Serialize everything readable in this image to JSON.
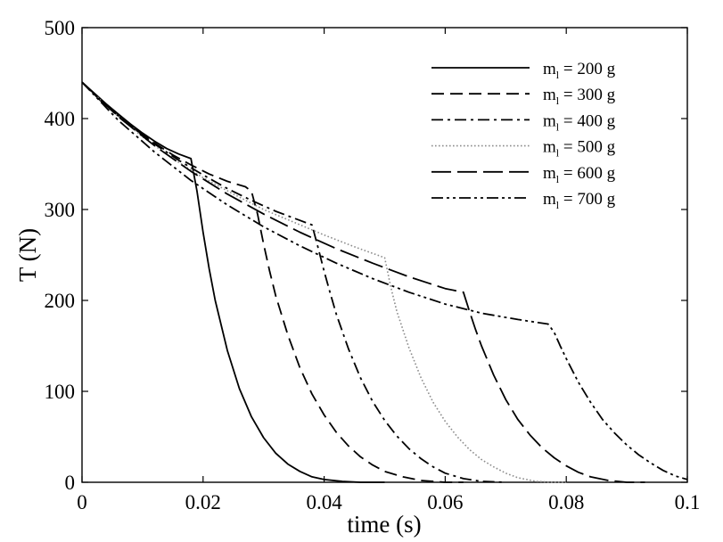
{
  "chart_data": {
    "type": "line",
    "title": "",
    "xlabel": "time (s)",
    "ylabel": "T (N)",
    "xlim": [
      0,
      0.1
    ],
    "ylim": [
      0,
      500
    ],
    "xticks": [
      0,
      0.02,
      0.04,
      0.06,
      0.08,
      0.1
    ],
    "xtick_labels": [
      "0",
      "0.02",
      "0.04",
      "0.06",
      "0.08",
      "0.1"
    ],
    "yticks": [
      0,
      100,
      200,
      300,
      400,
      500
    ],
    "ytick_labels": [
      "0",
      "100",
      "200",
      "300",
      "400",
      "500"
    ],
    "grid": false,
    "legend_position": "top-right",
    "series": [
      {
        "label_main": "m",
        "label_sub": "l",
        "label_rest": " = 200 g",
        "style": "solid",
        "color": "#000000",
        "x": [
          0,
          0.002,
          0.004,
          0.006,
          0.008,
          0.01,
          0.012,
          0.014,
          0.016,
          0.018,
          0.019,
          0.02,
          0.021,
          0.022,
          0.024,
          0.026,
          0.028,
          0.03,
          0.032,
          0.034,
          0.036,
          0.038,
          0.04,
          0.043,
          0.046,
          0.05
        ],
        "y": [
          440,
          428,
          416,
          405,
          394,
          384,
          375,
          367,
          361,
          356,
          320,
          275,
          235,
          200,
          145,
          103,
          72,
          49,
          32,
          20,
          12,
          6,
          3,
          1,
          0,
          0
        ]
      },
      {
        "label_main": "m",
        "label_sub": "l",
        "label_rest": " = 300 g",
        "style": "dash",
        "color": "#000000",
        "x": [
          0,
          0.003,
          0.006,
          0.009,
          0.012,
          0.015,
          0.018,
          0.021,
          0.024,
          0.027,
          0.028,
          0.029,
          0.03,
          0.031,
          0.032,
          0.034,
          0.036,
          0.038,
          0.04,
          0.042,
          0.044,
          0.046,
          0.048,
          0.05,
          0.053,
          0.056,
          0.06,
          0.063
        ],
        "y": [
          440,
          420,
          403,
          387,
          373,
          360,
          349,
          339,
          331,
          325,
          320,
          295,
          262,
          232,
          205,
          162,
          126,
          97,
          74,
          55,
          40,
          28,
          19,
          12,
          6,
          2,
          0,
          0
        ]
      },
      {
        "label_main": "m",
        "label_sub": "l",
        "label_rest": " = 400 g",
        "style": "dashdot",
        "color": "#000000",
        "x": [
          0,
          0.004,
          0.008,
          0.012,
          0.016,
          0.02,
          0.024,
          0.028,
          0.032,
          0.036,
          0.038,
          0.039,
          0.04,
          0.041,
          0.042,
          0.044,
          0.046,
          0.048,
          0.05,
          0.052,
          0.054,
          0.056,
          0.058,
          0.06,
          0.063,
          0.066,
          0.07
        ],
        "y": [
          440,
          414,
          392,
          372,
          354,
          338,
          323,
          310,
          298,
          288,
          283,
          258,
          232,
          208,
          185,
          147,
          115,
          89,
          68,
          51,
          37,
          26,
          17,
          10,
          4,
          1,
          0
        ]
      },
      {
        "label_main": "m",
        "label_sub": "l",
        "label_rest": " = 500 g",
        "style": "dotted",
        "color": "#8c8c8c",
        "x": [
          0,
          0.005,
          0.01,
          0.015,
          0.02,
          0.025,
          0.03,
          0.035,
          0.04,
          0.045,
          0.05,
          0.051,
          0.052,
          0.054,
          0.056,
          0.058,
          0.06,
          0.062,
          0.064,
          0.066,
          0.068,
          0.07,
          0.072,
          0.075,
          0.078,
          0.08
        ],
        "y": [
          440,
          408,
          380,
          356,
          335,
          317,
          300,
          286,
          272,
          259,
          247,
          215,
          188,
          148,
          115,
          88,
          67,
          50,
          36,
          25,
          17,
          10,
          5,
          1,
          0,
          0
        ]
      },
      {
        "label_main": "m",
        "label_sub": "l",
        "label_rest": " = 600 g",
        "style": "longdash",
        "color": "#000000",
        "x": [
          0,
          0.006,
          0.012,
          0.018,
          0.024,
          0.03,
          0.036,
          0.042,
          0.048,
          0.054,
          0.06,
          0.063,
          0.064,
          0.065,
          0.066,
          0.068,
          0.07,
          0.072,
          0.074,
          0.076,
          0.078,
          0.08,
          0.082,
          0.084,
          0.087,
          0.09,
          0.093
        ],
        "y": [
          440,
          402,
          370,
          342,
          317,
          295,
          275,
          257,
          241,
          226,
          213,
          209,
          188,
          168,
          150,
          118,
          91,
          69,
          52,
          38,
          27,
          18,
          11,
          6,
          2,
          0,
          0
        ]
      },
      {
        "label_main": "m",
        "label_sub": "l",
        "label_rest": " = 700 g",
        "style": "dashdotdot",
        "color": "#000000",
        "x": [
          0,
          0.006,
          0.012,
          0.018,
          0.024,
          0.03,
          0.036,
          0.042,
          0.048,
          0.054,
          0.06,
          0.066,
          0.072,
          0.077,
          0.078,
          0.079,
          0.08,
          0.082,
          0.084,
          0.086,
          0.088,
          0.09,
          0.092,
          0.094,
          0.096,
          0.098,
          0.1
        ],
        "y": [
          440,
          398,
          363,
          332,
          305,
          281,
          260,
          241,
          224,
          209,
          196,
          186,
          179,
          174,
          165,
          150,
          136,
          110,
          88,
          69,
          54,
          41,
          30,
          21,
          13,
          7,
          3
        ]
      }
    ]
  }
}
